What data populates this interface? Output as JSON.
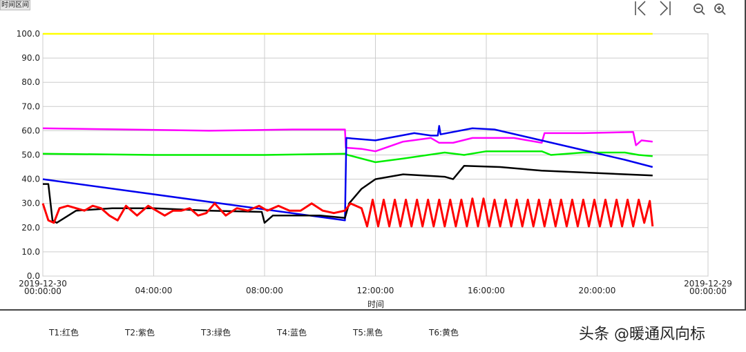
{
  "toolbar": {
    "range_button": "时间区间",
    "icons": [
      "first-page-icon",
      "last-page-icon",
      "zoom-out-icon",
      "zoom-in-icon"
    ]
  },
  "legend": [
    "T1:红色",
    "T2:紫色",
    "T3:绿色",
    "T4:蓝色",
    "T5:黑色",
    "T6:黄色"
  ],
  "watermark": "头条 @暖通风向标",
  "chart_data": {
    "type": "line",
    "xlabel": "时间",
    "ylabel": "",
    "ylim": [
      0,
      100
    ],
    "yticks": [
      "0.0",
      "10.0",
      "20.0",
      "30.0",
      "40.0",
      "50.0",
      "60.0",
      "70.0",
      "80.0",
      "90.0",
      "100.0"
    ],
    "xlim": [
      "00:00",
      "24:00"
    ],
    "xticks": [
      [
        "2019-12-30",
        "00:00:00"
      ],
      [
        "04:00:00"
      ],
      [
        "08:00:00"
      ],
      [
        "12:00:00"
      ],
      [
        "16:00:00"
      ],
      [
        "20:00:00"
      ],
      [
        "2019-12-29",
        "00:00:00"
      ]
    ],
    "grid": true,
    "series": [
      {
        "name": "T1",
        "color": "#ff0000",
        "points": [
          [
            "00:00",
            30
          ],
          [
            "00:12",
            23
          ],
          [
            "00:24",
            22
          ],
          [
            "00:36",
            28
          ],
          [
            "00:54",
            29
          ],
          [
            "01:12",
            28
          ],
          [
            "01:30",
            27
          ],
          [
            "01:48",
            29
          ],
          [
            "02:06",
            28
          ],
          [
            "02:24",
            25
          ],
          [
            "02:42",
            23
          ],
          [
            "03:00",
            29
          ],
          [
            "03:24",
            25
          ],
          [
            "03:48",
            29
          ],
          [
            "04:06",
            27
          ],
          [
            "04:24",
            25
          ],
          [
            "04:42",
            27
          ],
          [
            "05:00",
            27
          ],
          [
            "05:18",
            28
          ],
          [
            "05:36",
            25
          ],
          [
            "05:54",
            26
          ],
          [
            "06:12",
            30
          ],
          [
            "06:36",
            25
          ],
          [
            "07:00",
            28
          ],
          [
            "07:24",
            27
          ],
          [
            "07:48",
            29
          ],
          [
            "08:06",
            27
          ],
          [
            "08:30",
            29
          ],
          [
            "08:54",
            27
          ],
          [
            "09:18",
            27
          ],
          [
            "09:42",
            30
          ],
          [
            "10:06",
            27
          ],
          [
            "10:30",
            26
          ],
          [
            "10:54",
            27
          ],
          [
            "11:06",
            30
          ],
          [
            "11:30",
            28
          ],
          [
            "11:42",
            20.5
          ],
          [
            "11:54",
            31.5
          ],
          [
            "12:06",
            20.5
          ],
          [
            "12:18",
            31.5
          ],
          [
            "12:30",
            20.5
          ],
          [
            "12:42",
            31.5
          ],
          [
            "12:54",
            20.5
          ],
          [
            "13:06",
            31.5
          ],
          [
            "13:18",
            20.5
          ],
          [
            "13:30",
            31.5
          ],
          [
            "13:42",
            20.5
          ],
          [
            "13:54",
            31.5
          ],
          [
            "14:06",
            20.5
          ],
          [
            "14:18",
            31.5
          ],
          [
            "14:30",
            20.5
          ],
          [
            "14:42",
            31.5
          ],
          [
            "14:54",
            20.5
          ],
          [
            "15:06",
            31.5
          ],
          [
            "15:18",
            20.5
          ],
          [
            "15:30",
            32
          ],
          [
            "15:42",
            20.5
          ],
          [
            "15:54",
            32
          ],
          [
            "16:06",
            20.5
          ],
          [
            "16:18",
            31.5
          ],
          [
            "16:30",
            20.5
          ],
          [
            "16:42",
            31.5
          ],
          [
            "16:54",
            20.5
          ],
          [
            "17:06",
            31.5
          ],
          [
            "17:18",
            20.5
          ],
          [
            "17:30",
            31.5
          ],
          [
            "17:42",
            20.5
          ],
          [
            "17:54",
            31.5
          ],
          [
            "18:06",
            20.5
          ],
          [
            "18:18",
            31.5
          ],
          [
            "18:30",
            20.5
          ],
          [
            "18:42",
            31.5
          ],
          [
            "18:54",
            20.5
          ],
          [
            "19:06",
            31.5
          ],
          [
            "19:18",
            20.5
          ],
          [
            "19:30",
            31.5
          ],
          [
            "19:42",
            20.5
          ],
          [
            "19:54",
            31.5
          ],
          [
            "20:06",
            20.5
          ],
          [
            "20:18",
            31.5
          ],
          [
            "20:30",
            20.5
          ],
          [
            "20:42",
            31.5
          ],
          [
            "20:54",
            20.5
          ],
          [
            "21:06",
            31.5
          ],
          [
            "21:18",
            20.5
          ],
          [
            "21:30",
            31.5
          ],
          [
            "21:42",
            22
          ],
          [
            "21:54",
            31
          ],
          [
            "22:00",
            20.5
          ]
        ]
      },
      {
        "name": "T2",
        "color": "#ff00ff",
        "points": [
          [
            "00:00",
            61
          ],
          [
            "03:00",
            60.5
          ],
          [
            "06:00",
            60
          ],
          [
            "09:00",
            60.5
          ],
          [
            "10:54",
            60.5
          ],
          [
            "10:56",
            53
          ],
          [
            "11:30",
            52.5
          ],
          [
            "12:00",
            51.5
          ],
          [
            "13:00",
            55.5
          ],
          [
            "14:00",
            57
          ],
          [
            "14:18",
            55
          ],
          [
            "14:48",
            55
          ],
          [
            "15:30",
            57
          ],
          [
            "17:00",
            57
          ],
          [
            "18:00",
            55
          ],
          [
            "18:06",
            59
          ],
          [
            "19:30",
            59
          ],
          [
            "21:18",
            59.5
          ],
          [
            "21:24",
            54
          ],
          [
            "21:36",
            56
          ],
          [
            "22:00",
            55.5
          ]
        ]
      },
      {
        "name": "T3",
        "color": "#00ee00",
        "points": [
          [
            "00:00",
            50.5
          ],
          [
            "04:00",
            50
          ],
          [
            "08:00",
            50
          ],
          [
            "10:54",
            50.5
          ],
          [
            "11:00",
            50
          ],
          [
            "12:00",
            47
          ],
          [
            "13:00",
            48.5
          ],
          [
            "14:30",
            51
          ],
          [
            "15:12",
            50
          ],
          [
            "16:00",
            51.5
          ],
          [
            "18:00",
            51.5
          ],
          [
            "18:20",
            50
          ],
          [
            "19:30",
            51
          ],
          [
            "21:00",
            51
          ],
          [
            "21:30",
            50
          ],
          [
            "22:00",
            49.5
          ]
        ]
      },
      {
        "name": "T4",
        "color": "#0000ee",
        "points": [
          [
            "00:00",
            40
          ],
          [
            "10:54",
            23
          ],
          [
            "10:57",
            57
          ],
          [
            "12:00",
            56
          ],
          [
            "13:24",
            59
          ],
          [
            "14:00",
            58
          ],
          [
            "14:15",
            58
          ],
          [
            "14:18",
            62
          ],
          [
            "14:21",
            58.5
          ],
          [
            "15:30",
            61
          ],
          [
            "16:18",
            60.5
          ],
          [
            "19:30",
            52
          ],
          [
            "21:00",
            48
          ],
          [
            "22:00",
            45
          ]
        ]
      },
      {
        "name": "T5",
        "color": "#000000",
        "points": [
          [
            "00:00",
            38
          ],
          [
            "00:12",
            38
          ],
          [
            "00:21",
            23
          ],
          [
            "00:30",
            22
          ],
          [
            "01:12",
            27
          ],
          [
            "02:30",
            28
          ],
          [
            "04:00",
            28
          ],
          [
            "06:00",
            27
          ],
          [
            "07:54",
            26.5
          ],
          [
            "08:00",
            22
          ],
          [
            "08:18",
            25
          ],
          [
            "10:00",
            25
          ],
          [
            "10:54",
            24
          ],
          [
            "11:03",
            30
          ],
          [
            "11:30",
            36
          ],
          [
            "12:00",
            40
          ],
          [
            "13:00",
            42
          ],
          [
            "14:30",
            41
          ],
          [
            "14:48",
            40
          ],
          [
            "15:12",
            45.5
          ],
          [
            "16:30",
            45
          ],
          [
            "18:00",
            43.5
          ],
          [
            "20:00",
            42.5
          ],
          [
            "22:00",
            41.5
          ]
        ]
      },
      {
        "name": "T6",
        "color": "#ffff00",
        "points": [
          [
            "00:00",
            100
          ],
          [
            "22:00",
            100
          ]
        ]
      }
    ]
  }
}
